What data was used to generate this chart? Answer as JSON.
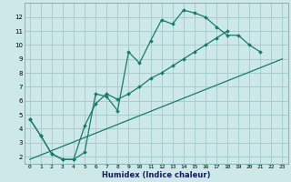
{
  "xlabel": "Humidex (Indice chaleur)",
  "bg_color": "#cce8e8",
  "grid_color": "#aacccc",
  "line_color": "#1a7a6a",
  "xlim": [
    -0.5,
    23.5
  ],
  "ylim": [
    1.5,
    13.0
  ],
  "xticks": [
    0,
    1,
    2,
    3,
    4,
    5,
    6,
    7,
    8,
    9,
    10,
    11,
    12,
    13,
    14,
    15,
    16,
    17,
    18,
    19,
    20,
    21,
    22,
    23
  ],
  "yticks": [
    2,
    3,
    4,
    5,
    6,
    7,
    8,
    9,
    10,
    11,
    12
  ],
  "line1_x": [
    0,
    1,
    2,
    3,
    4,
    5,
    6,
    7,
    8,
    9,
    10,
    11,
    12,
    13,
    14,
    15,
    16,
    17,
    18,
    19,
    20,
    21
  ],
  "line1_y": [
    4.7,
    3.5,
    2.2,
    1.8,
    1.8,
    2.3,
    6.5,
    6.3,
    5.3,
    9.5,
    8.7,
    10.3,
    11.8,
    11.5,
    12.5,
    12.3,
    12.0,
    11.3,
    10.7,
    10.7,
    10.0,
    9.5
  ],
  "line2_x": [
    0,
    1,
    2,
    3,
    4,
    5,
    6,
    7,
    8,
    9,
    10,
    11,
    12,
    13,
    14,
    15,
    16,
    17,
    18
  ],
  "line2_y": [
    4.7,
    3.5,
    2.2,
    1.8,
    1.8,
    4.2,
    5.8,
    6.5,
    6.1,
    6.5,
    7.0,
    7.6,
    8.0,
    8.5,
    9.0,
    9.5,
    10.0,
    10.5,
    11.0
  ],
  "line3_x": [
    0,
    23
  ],
  "line3_y": [
    1.8,
    9.0
  ]
}
